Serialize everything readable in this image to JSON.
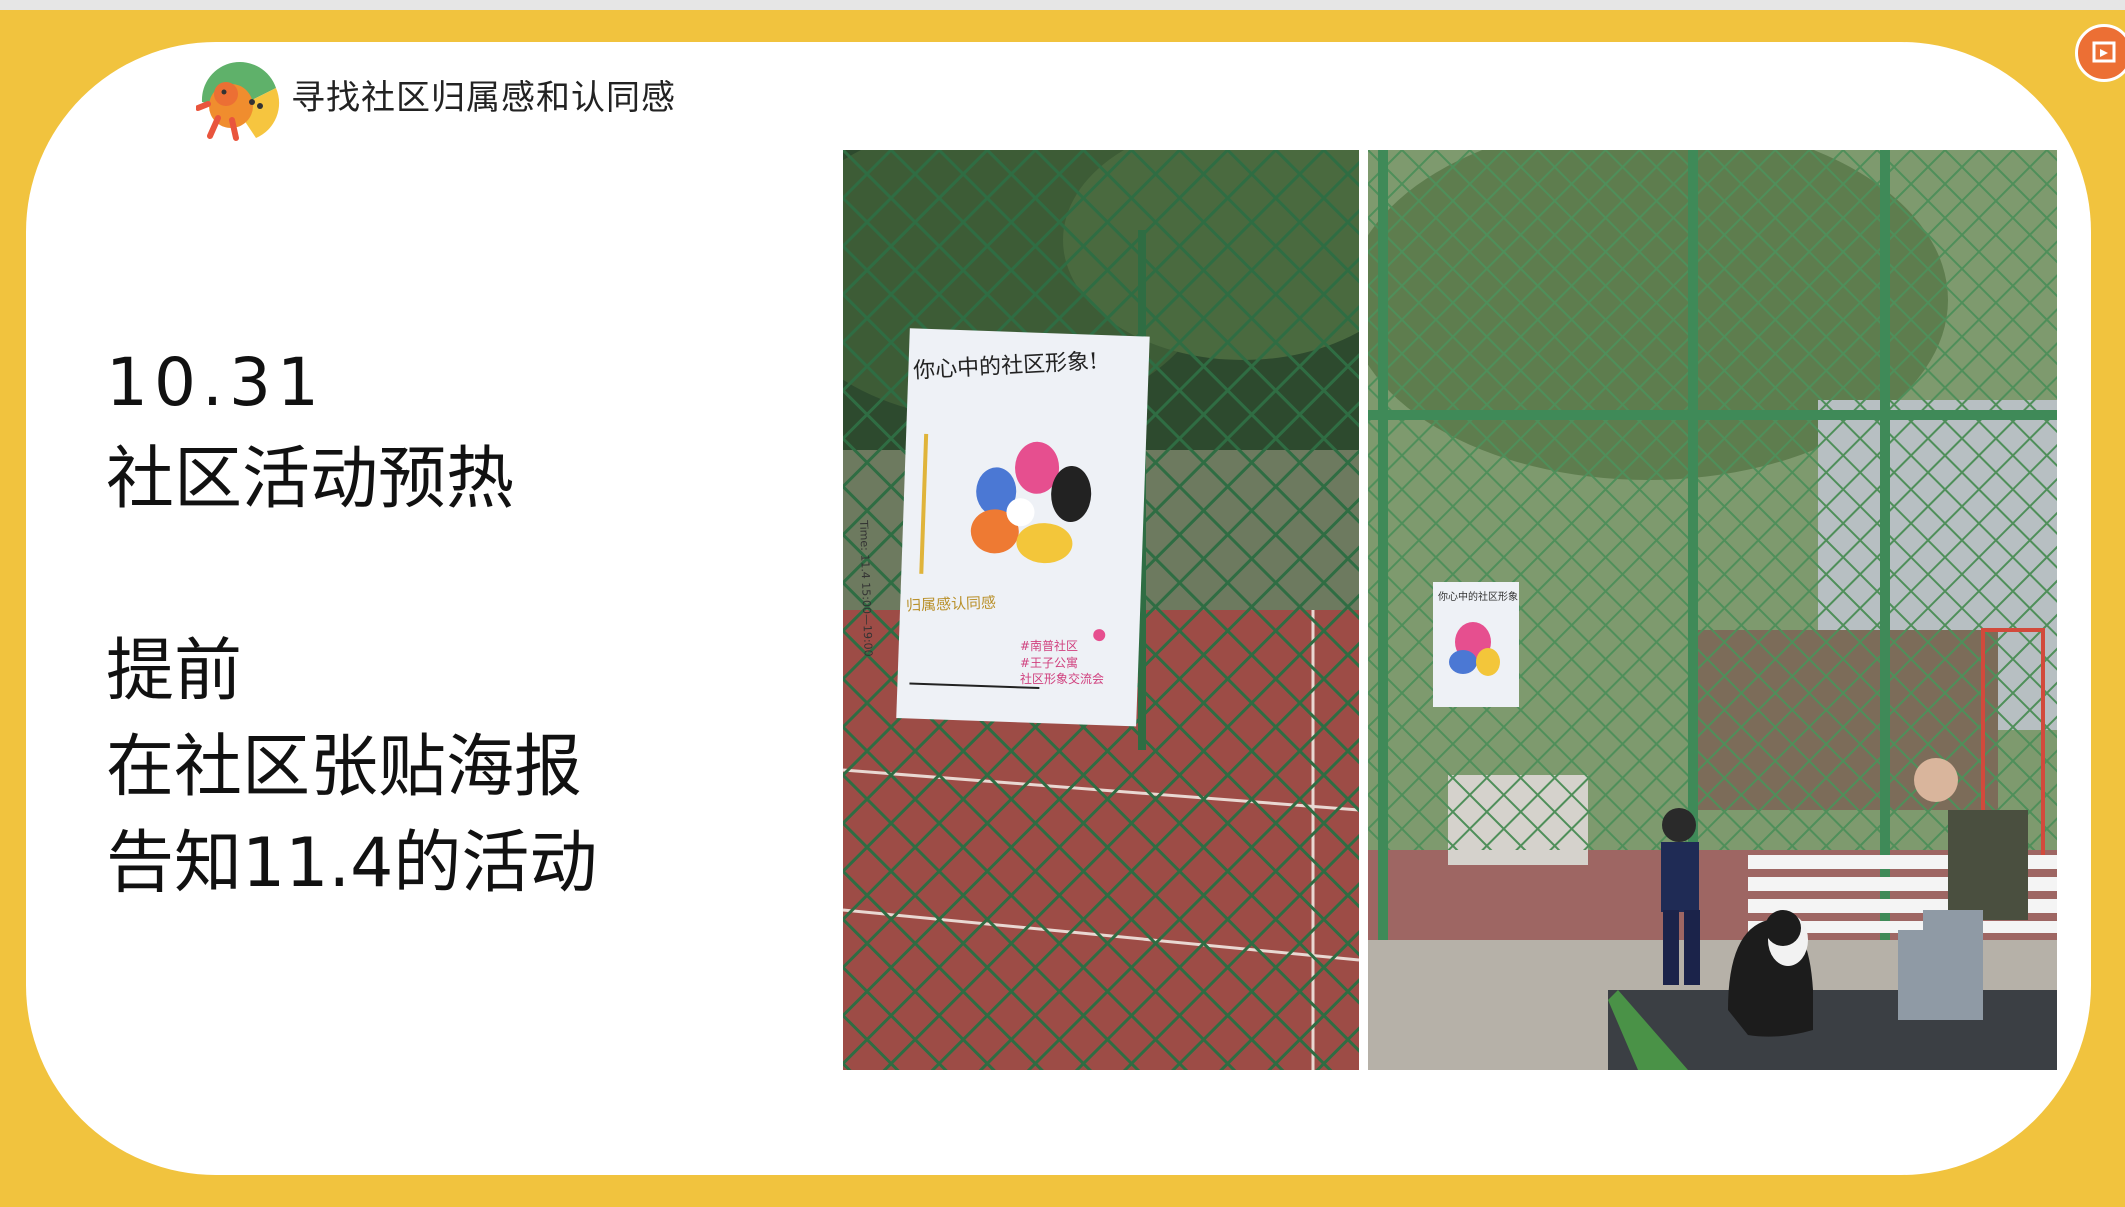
{
  "header": {
    "title": "寻找社区归属感和认同感"
  },
  "main": {
    "lines": [
      "10.31",
      "社区活动预热",
      "",
      "提前",
      "在社区张贴海报",
      "告知11.4的活动"
    ]
  },
  "poster": {
    "headline": "你心中的社区形象!",
    "time": "Time: 11.4 15:00—19:00",
    "subtitle": "归属感认同感",
    "tags": [
      "#南普社区",
      "#王子公寓",
      "社区形象交流会"
    ]
  },
  "small_poster": {
    "headline": "你心中的社区形象"
  },
  "colors": {
    "frame": "#f1c33e",
    "accent": "#ec6f34"
  },
  "icons": {
    "logo": "community-logo-icon",
    "corner": "slideshow-icon"
  }
}
